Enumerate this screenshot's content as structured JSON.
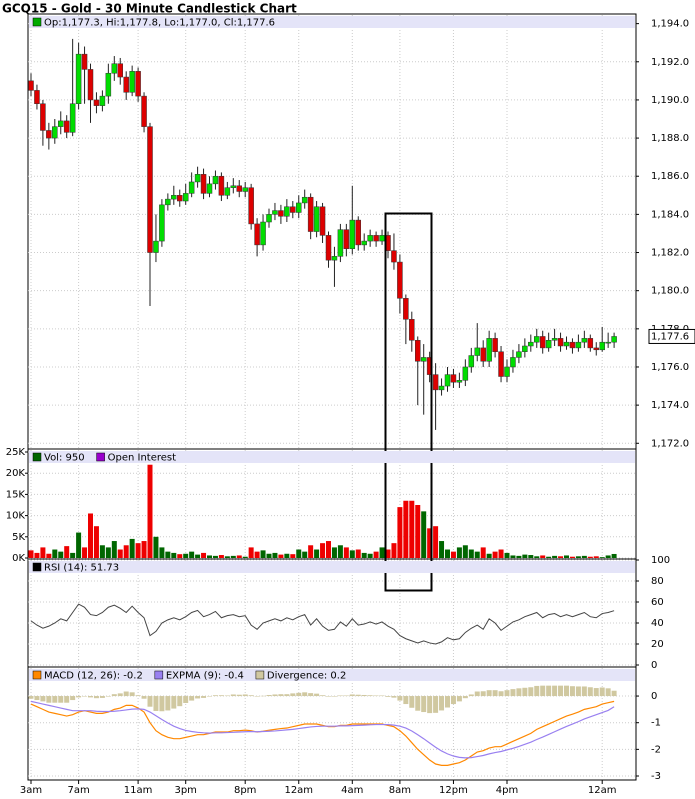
{
  "chart_data": [
    {
      "type": "candlestick",
      "title": "GCQ15 - Gold - 30 Minute Candlestick Chart",
      "legend": [
        {
          "label": "Op:1,177.3, Hi:1,177.8, Lo:1,177.0, Cl:1,177.6",
          "color": "#00aa00"
        }
      ],
      "categories": [
        "3am",
        null,
        null,
        null,
        null,
        null,
        null,
        null,
        "7am",
        null,
        null,
        null,
        null,
        null,
        null,
        null,
        null,
        null,
        "11am",
        null,
        null,
        null,
        null,
        null,
        null,
        null,
        "3pm",
        null,
        null,
        null,
        null,
        null,
        null,
        null,
        null,
        null,
        "8pm",
        null,
        null,
        null,
        null,
        null,
        null,
        null,
        null,
        "12am",
        null,
        null,
        null,
        null,
        null,
        null,
        null,
        null,
        "4am",
        null,
        null,
        null,
        null,
        null,
        null,
        null,
        "8am",
        null,
        null,
        null,
        null,
        null,
        null,
        null,
        null,
        "12pm",
        null,
        null,
        null,
        null,
        null,
        null,
        null,
        null,
        "4pm",
        null,
        null,
        null,
        null,
        null,
        null,
        null,
        null,
        null,
        null,
        null,
        null,
        null,
        null,
        null,
        "12am",
        null,
        null
      ],
      "open": [
        1191.0,
        1190.5,
        1189.8,
        1188.4,
        1188.0,
        1188.6,
        1188.9,
        1188.3,
        1189.8,
        1192.4,
        1191.6,
        1190.0,
        1189.7,
        1190.2,
        1191.4,
        1191.9,
        1191.2,
        1190.4,
        1191.5,
        1190.2,
        1188.6,
        1182.0,
        1182.6,
        1184.5,
        1184.8,
        1185.0,
        1184.7,
        1185.1,
        1185.7,
        1186.1,
        1185.1,
        1185.6,
        1186.0,
        1185.0,
        1185.4,
        1185.5,
        1185.2,
        1185.4,
        1183.5,
        1182.4,
        1183.6,
        1184.0,
        1184.2,
        1183.9,
        1184.4,
        1184.1,
        1184.6,
        1184.9,
        1183.1,
        1184.4,
        1182.9,
        1181.6,
        1181.8,
        1183.2,
        1182.2,
        1183.7,
        1182.4,
        1182.6,
        1182.9,
        1182.6,
        1182.9,
        1182.1,
        1181.5,
        1179.6,
        1178.5,
        1177.4,
        1176.3,
        1176.5,
        1175.6,
        1174.8,
        1175.0,
        1175.6,
        1175.2,
        1175.3,
        1176.0,
        1176.6,
        1177.0,
        1176.3,
        1177.5,
        1176.8,
        1175.5,
        1176.0,
        1176.5,
        1176.8,
        1177.1,
        1177.3,
        1177.6,
        1177.0,
        1177.4,
        1177.5,
        1177.1,
        1177.3,
        1177.0,
        1177.3,
        1177.5,
        1177.0,
        1176.9,
        1177.3,
        1177.3
      ],
      "high": [
        1191.4,
        1190.8,
        1190.0,
        1188.8,
        1189.0,
        1189.4,
        1189.2,
        1193.2,
        1193.0,
        1192.8,
        1191.9,
        1190.4,
        1190.5,
        1191.9,
        1192.3,
        1192.2,
        1191.5,
        1191.8,
        1191.7,
        1190.4,
        1188.8,
        1184.0,
        1184.8,
        1185.1,
        1185.5,
        1185.3,
        1185.6,
        1186.2,
        1186.5,
        1186.4,
        1186.0,
        1186.3,
        1186.2,
        1185.7,
        1185.9,
        1185.8,
        1185.7,
        1185.6,
        1183.8,
        1184.0,
        1184.3,
        1184.6,
        1184.5,
        1184.8,
        1184.7,
        1185.0,
        1185.3,
        1185.1,
        1184.7,
        1184.6,
        1183.1,
        1182.3,
        1183.5,
        1183.5,
        1185.5,
        1183.9,
        1183.0,
        1183.2,
        1183.1,
        1183.2,
        1183.1,
        1183.0,
        1181.9,
        1179.8,
        1178.9,
        1177.6,
        1177.2,
        1176.8,
        1176.2,
        1175.4,
        1176.0,
        1175.9,
        1175.7,
        1176.4,
        1177.0,
        1178.3,
        1177.4,
        1177.9,
        1177.8,
        1177.1,
        1176.4,
        1176.9,
        1177.2,
        1177.5,
        1177.7,
        1178.0,
        1177.9,
        1177.8,
        1178.0,
        1177.8,
        1177.6,
        1177.5,
        1177.7,
        1177.9,
        1177.7,
        1177.3,
        1178.1,
        1177.8,
        1177.8
      ],
      "low": [
        1190.2,
        1189.5,
        1187.6,
        1187.4,
        1187.7,
        1188.2,
        1188.0,
        1188.1,
        1189.5,
        1189.8,
        1188.8,
        1189.3,
        1189.4,
        1189.8,
        1191.0,
        1190.8,
        1190.0,
        1190.2,
        1189.9,
        1188.3,
        1179.2,
        1181.5,
        1182.3,
        1184.2,
        1184.5,
        1184.4,
        1184.5,
        1184.9,
        1185.4,
        1184.8,
        1184.9,
        1185.3,
        1184.7,
        1184.8,
        1185.1,
        1184.9,
        1184.9,
        1183.2,
        1181.8,
        1182.1,
        1183.3,
        1183.7,
        1183.5,
        1183.6,
        1183.8,
        1183.8,
        1184.3,
        1182.7,
        1182.8,
        1182.5,
        1181.2,
        1180.2,
        1181.5,
        1181.8,
        1181.9,
        1182.1,
        1182.1,
        1182.3,
        1182.3,
        1182.4,
        1181.7,
        1181.1,
        1178.8,
        1177.2,
        1176.8,
        1174.0,
        1173.5,
        1175.2,
        1172.7,
        1174.5,
        1174.7,
        1174.9,
        1174.9,
        1175.0,
        1175.7,
        1176.3,
        1176.0,
        1176.0,
        1176.5,
        1175.2,
        1175.2,
        1175.7,
        1176.2,
        1176.5,
        1176.8,
        1177.0,
        1176.7,
        1176.8,
        1177.1,
        1176.8,
        1176.9,
        1176.7,
        1176.8,
        1177.0,
        1176.8,
        1176.6,
        1176.8,
        1177.0,
        1177.0
      ],
      "close": [
        1190.5,
        1189.8,
        1188.4,
        1188.0,
        1188.6,
        1188.9,
        1188.3,
        1189.8,
        1192.4,
        1191.6,
        1190.0,
        1189.7,
        1190.2,
        1191.4,
        1191.9,
        1191.2,
        1190.4,
        1191.5,
        1190.2,
        1188.6,
        1182.0,
        1182.6,
        1184.5,
        1184.8,
        1185.0,
        1184.7,
        1185.1,
        1185.7,
        1186.1,
        1185.1,
        1185.6,
        1186.0,
        1185.0,
        1185.4,
        1185.5,
        1185.2,
        1185.4,
        1183.5,
        1182.4,
        1183.6,
        1184.0,
        1184.2,
        1183.9,
        1184.4,
        1184.1,
        1184.6,
        1184.9,
        1183.1,
        1184.4,
        1182.9,
        1181.6,
        1181.8,
        1183.2,
        1182.2,
        1183.7,
        1182.4,
        1182.6,
        1182.9,
        1182.6,
        1182.9,
        1182.1,
        1181.5,
        1179.6,
        1178.5,
        1177.4,
        1176.3,
        1176.5,
        1175.6,
        1174.8,
        1175.0,
        1175.6,
        1175.2,
        1175.3,
        1176.0,
        1176.6,
        1177.0,
        1176.3,
        1177.5,
        1176.8,
        1175.5,
        1176.0,
        1176.5,
        1176.8,
        1177.1,
        1177.3,
        1177.6,
        1177.0,
        1177.4,
        1177.5,
        1177.1,
        1177.3,
        1177.0,
        1177.3,
        1177.5,
        1177.0,
        1176.9,
        1177.3,
        1177.3,
        1177.6
      ],
      "up_color": "#00dd00",
      "down_color": "#dd0000",
      "last_label": "1,177.6",
      "ylim": [
        1171.7,
        1194.4
      ],
      "yticks": [
        {
          "value": 1172,
          "label": "1,172.0"
        },
        {
          "value": 1174,
          "label": "1,174.0"
        },
        {
          "value": 1176,
          "label": "1,176.0"
        },
        {
          "value": 1178,
          "label": "1,178.0"
        },
        {
          "value": 1180,
          "label": "1,180.0"
        },
        {
          "value": 1182,
          "label": "1,182.0"
        },
        {
          "value": 1184,
          "label": "1,184.0"
        },
        {
          "value": 1186,
          "label": "1,186.0"
        },
        {
          "value": 1188,
          "label": "1,188.0"
        },
        {
          "value": 1190,
          "label": "1,190.0"
        },
        {
          "value": 1192,
          "label": "1,192.0"
        },
        {
          "value": 1194,
          "label": "1,194.0"
        }
      ],
      "grid": true
    },
    {
      "type": "volume",
      "legend": [
        {
          "label": "Vol: 950",
          "color": "#006600"
        },
        {
          "label": "Open Interest",
          "color": "#9900cc"
        }
      ],
      "values": [
        1800,
        1200,
        2500,
        1000,
        2000,
        1500,
        2800,
        1200,
        6000,
        2500,
        10500,
        7500,
        3000,
        2500,
        4000,
        2000,
        3000,
        4500,
        3500,
        4000,
        22000,
        5000,
        2500,
        1500,
        1200,
        900,
        1000,
        1500,
        800,
        1200,
        600,
        500,
        700,
        400,
        500,
        600,
        300,
        2500,
        1500,
        1800,
        1000,
        1200,
        800,
        1000,
        900,
        2000,
        1500,
        3000,
        2000,
        3500,
        4000,
        2500,
        3000,
        2500,
        1800,
        2000,
        1200,
        1000,
        1500,
        2500,
        2000,
        3500,
        12000,
        13500,
        13500,
        12500,
        11000,
        7000,
        7500,
        4000,
        2000,
        1500,
        2500,
        3000,
        2000,
        1500,
        2500,
        1000,
        1500,
        2000,
        1200,
        600,
        500,
        800,
        700,
        400,
        600,
        300,
        500,
        400,
        600,
        300,
        400,
        500,
        300,
        400,
        200,
        600,
        950
      ],
      "up_color": "#006600",
      "down_color": "#ee0000",
      "ylim": [
        0,
        25000
      ],
      "yticks": [
        {
          "value": 0,
          "label": "0K"
        },
        {
          "value": 5000,
          "label": "5K"
        },
        {
          "value": 10000,
          "label": "10K"
        },
        {
          "value": 15000,
          "label": "15K"
        },
        {
          "value": 20000,
          "label": "20K"
        },
        {
          "value": 25000,
          "label": "25K"
        }
      ],
      "grid": true
    },
    {
      "type": "line",
      "legend": [
        {
          "label": "RSI (14): 51.73",
          "color": "#000000"
        }
      ],
      "values": [
        42,
        38,
        35,
        37,
        40,
        44,
        42,
        50,
        58,
        55,
        48,
        47,
        50,
        55,
        57,
        54,
        50,
        56,
        50,
        45,
        28,
        32,
        40,
        43,
        45,
        43,
        46,
        50,
        52,
        46,
        48,
        51,
        45,
        47,
        48,
        46,
        47,
        38,
        34,
        40,
        42,
        44,
        42,
        45,
        43,
        46,
        48,
        38,
        44,
        37,
        33,
        34,
        41,
        37,
        44,
        38,
        39,
        41,
        39,
        41,
        37,
        34,
        28,
        25,
        23,
        21,
        23,
        21,
        20,
        22,
        26,
        24,
        25,
        31,
        35,
        38,
        34,
        44,
        40,
        33,
        37,
        41,
        43,
        46,
        48,
        50,
        45,
        48,
        49,
        46,
        48,
        46,
        48,
        50,
        46,
        45,
        49,
        50,
        51.73
      ],
      "color": "#444444",
      "ylim": [
        0,
        100
      ],
      "yticks": [
        0,
        20,
        40,
        60,
        80,
        100
      ],
      "grid": true
    },
    {
      "type": "macd",
      "series": [
        {
          "name": "MACD (12, 26): -0.2",
          "color": "#ff8800",
          "kind": "line",
          "values": [
            -0.3,
            -0.4,
            -0.5,
            -0.6,
            -0.65,
            -0.7,
            -0.75,
            -0.7,
            -0.6,
            -0.55,
            -0.6,
            -0.65,
            -0.65,
            -0.6,
            -0.5,
            -0.45,
            -0.35,
            -0.35,
            -0.45,
            -0.6,
            -1.0,
            -1.3,
            -1.45,
            -1.55,
            -1.6,
            -1.6,
            -1.55,
            -1.5,
            -1.45,
            -1.45,
            -1.4,
            -1.35,
            -1.35,
            -1.35,
            -1.3,
            -1.3,
            -1.28,
            -1.3,
            -1.35,
            -1.32,
            -1.28,
            -1.25,
            -1.22,
            -1.2,
            -1.15,
            -1.1,
            -1.05,
            -1.05,
            -1.05,
            -1.1,
            -1.15,
            -1.15,
            -1.1,
            -1.1,
            -1.05,
            -1.05,
            -1.05,
            -1.05,
            -1.05,
            -1.05,
            -1.1,
            -1.15,
            -1.3,
            -1.5,
            -1.75,
            -2.0,
            -2.2,
            -2.4,
            -2.55,
            -2.6,
            -2.6,
            -2.55,
            -2.5,
            -2.4,
            -2.25,
            -2.1,
            -2.05,
            -1.95,
            -1.9,
            -1.9,
            -1.8,
            -1.7,
            -1.6,
            -1.5,
            -1.4,
            -1.25,
            -1.15,
            -1.05,
            -0.95,
            -0.85,
            -0.75,
            -0.68,
            -0.6,
            -0.5,
            -0.45,
            -0.4,
            -0.3,
            -0.25,
            -0.2
          ]
        },
        {
          "name": "EXPMA (9): -0.4",
          "color": "#9980f0",
          "kind": "line",
          "values": [
            -0.2,
            -0.25,
            -0.3,
            -0.35,
            -0.4,
            -0.45,
            -0.5,
            -0.55,
            -0.55,
            -0.55,
            -0.55,
            -0.57,
            -0.58,
            -0.58,
            -0.57,
            -0.55,
            -0.52,
            -0.49,
            -0.48,
            -0.5,
            -0.6,
            -0.74,
            -0.88,
            -1.01,
            -1.13,
            -1.22,
            -1.29,
            -1.33,
            -1.36,
            -1.38,
            -1.39,
            -1.38,
            -1.38,
            -1.37,
            -1.36,
            -1.35,
            -1.34,
            -1.33,
            -1.34,
            -1.33,
            -1.32,
            -1.31,
            -1.29,
            -1.27,
            -1.25,
            -1.22,
            -1.19,
            -1.16,
            -1.14,
            -1.13,
            -1.13,
            -1.13,
            -1.12,
            -1.12,
            -1.11,
            -1.1,
            -1.09,
            -1.08,
            -1.07,
            -1.07,
            -1.07,
            -1.09,
            -1.13,
            -1.2,
            -1.31,
            -1.45,
            -1.6,
            -1.76,
            -1.92,
            -2.06,
            -2.17,
            -2.25,
            -2.3,
            -2.32,
            -2.31,
            -2.27,
            -2.23,
            -2.17,
            -2.12,
            -2.08,
            -2.02,
            -1.96,
            -1.89,
            -1.81,
            -1.73,
            -1.63,
            -1.54,
            -1.44,
            -1.34,
            -1.24,
            -1.14,
            -1.05,
            -0.96,
            -0.86,
            -0.78,
            -0.7,
            -0.62,
            -0.54,
            -0.4
          ]
        },
        {
          "name": "Divergence: 0.2",
          "color": "#d0c8a0",
          "kind": "bar",
          "values": [
            -0.1,
            -0.15,
            -0.2,
            -0.25,
            -0.25,
            -0.25,
            -0.25,
            -0.15,
            -0.05,
            0,
            -0.05,
            -0.08,
            -0.07,
            -0.02,
            0.07,
            0.1,
            0.17,
            0.14,
            0.03,
            -0.1,
            -0.4,
            -0.56,
            -0.57,
            -0.54,
            -0.47,
            -0.38,
            -0.26,
            -0.17,
            -0.09,
            -0.07,
            -0.01,
            0.03,
            0.03,
            0.02,
            0.06,
            0.05,
            0.06,
            0.03,
            -0.01,
            0.01,
            0.04,
            0.06,
            0.07,
            0.07,
            0.1,
            0.12,
            0.14,
            0.11,
            0.09,
            0.03,
            -0.02,
            -0.02,
            0.02,
            0.02,
            0.06,
            0.05,
            0.04,
            0.03,
            0.02,
            0.02,
            -0.03,
            -0.06,
            -0.17,
            -0.3,
            -0.44,
            -0.55,
            -0.6,
            -0.64,
            -0.63,
            -0.54,
            -0.43,
            -0.3,
            -0.2,
            -0.08,
            0.06,
            0.17,
            0.18,
            0.22,
            0.22,
            0.18,
            0.22,
            0.26,
            0.29,
            0.31,
            0.33,
            0.38,
            0.39,
            0.39,
            0.39,
            0.39,
            0.39,
            0.37,
            0.36,
            0.36,
            0.33,
            0.3,
            0.32,
            0.29,
            0.2
          ]
        }
      ],
      "ylim": [
        -3.15,
        1.09
      ],
      "yticks": [
        -3,
        -2,
        -1,
        0
      ],
      "grid": true
    }
  ]
}
